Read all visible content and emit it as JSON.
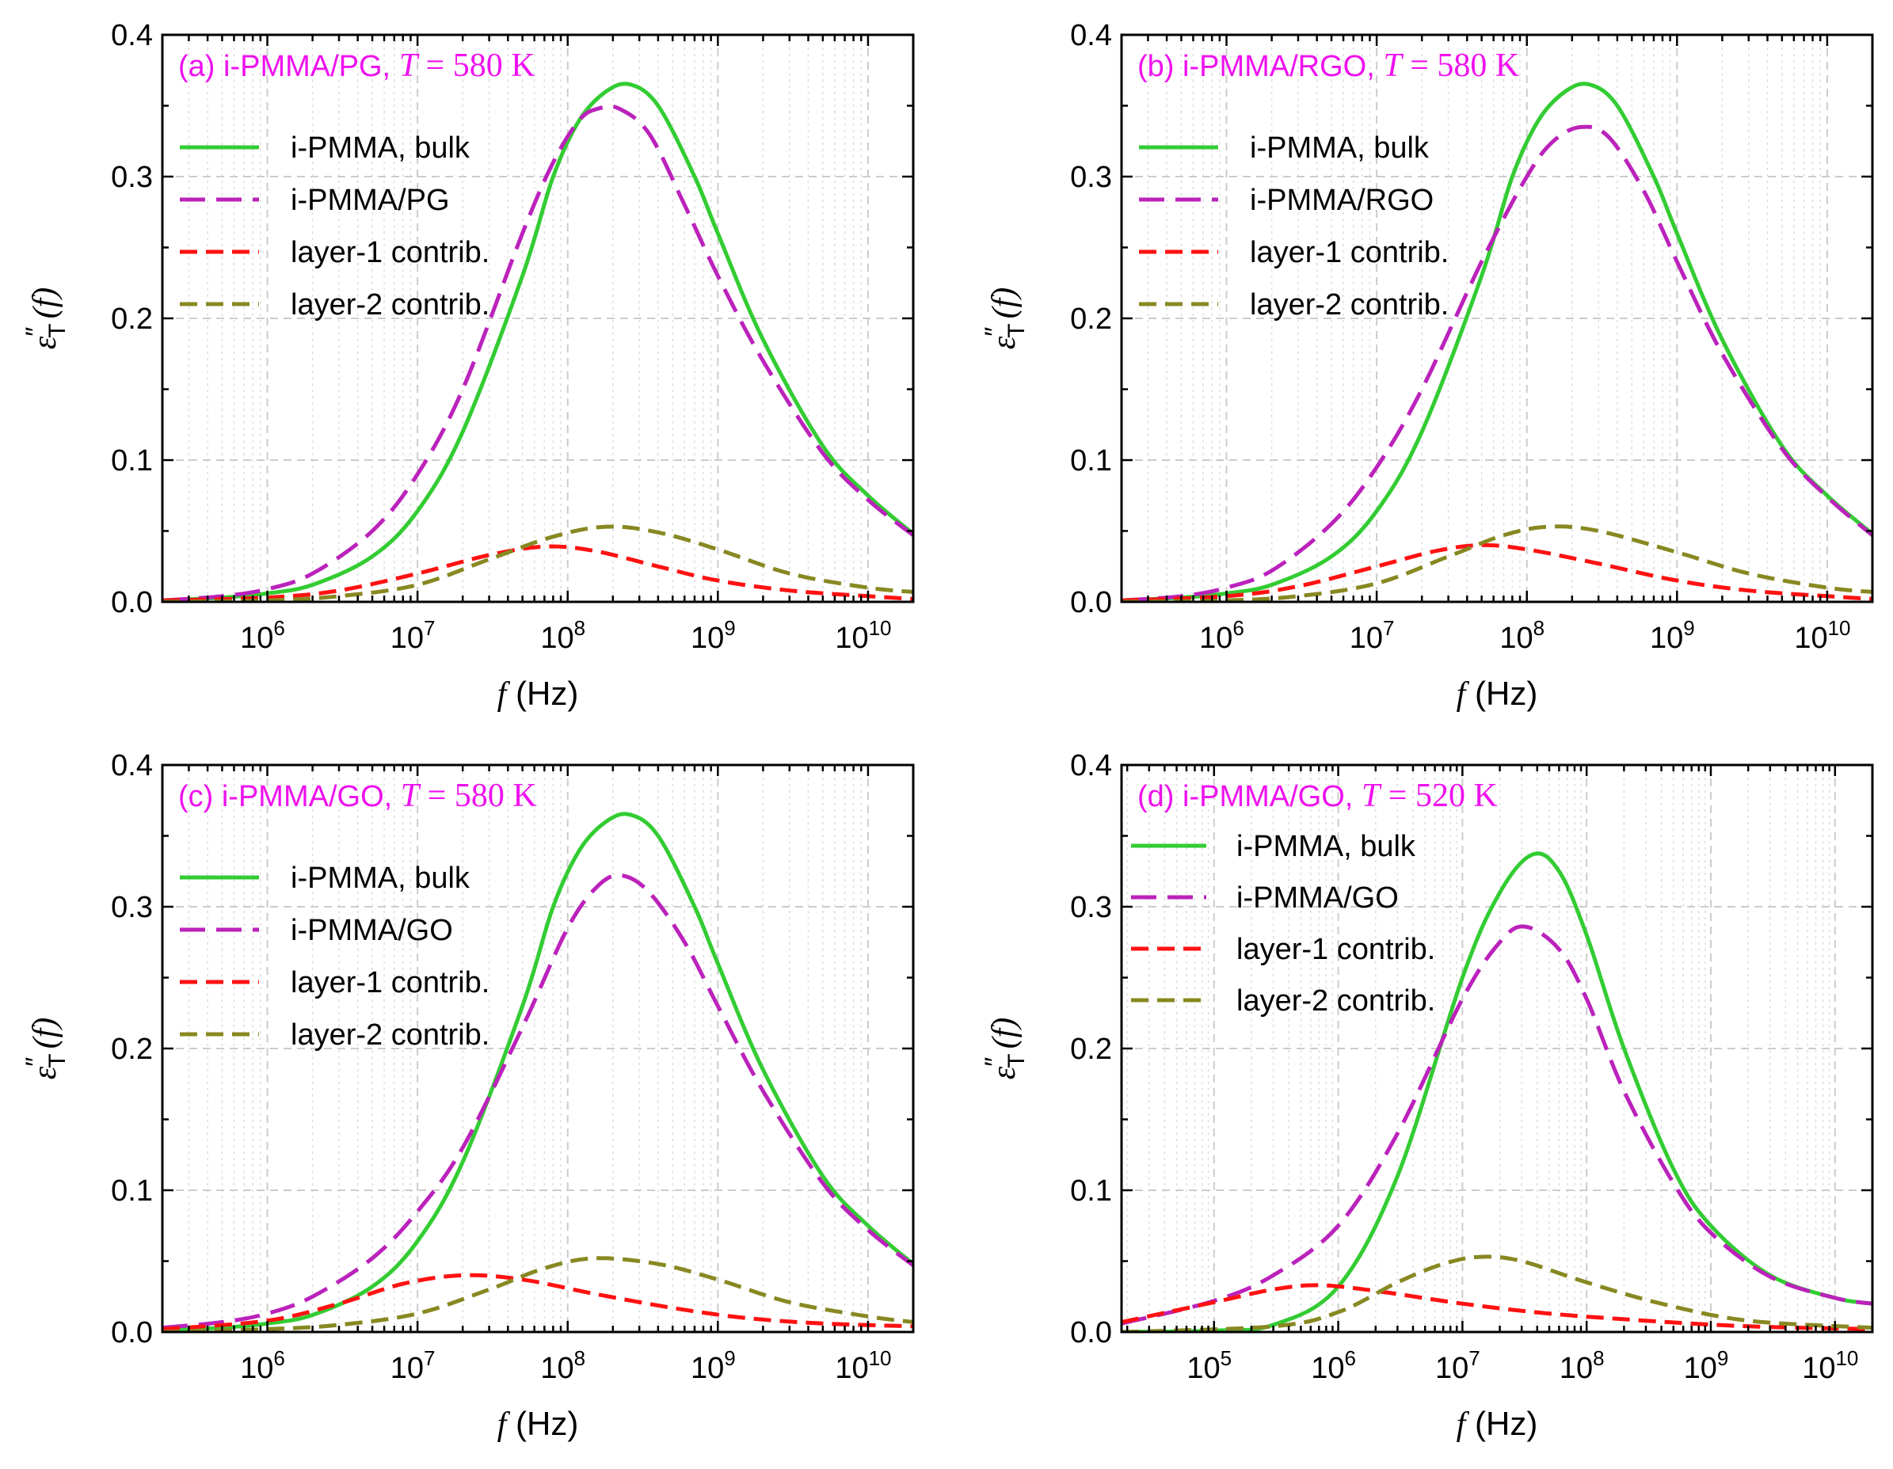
{
  "figure": {
    "layout": "2x2 grid",
    "colors": {
      "bulk": "#33cc33",
      "composite": "#bb22bb",
      "layer1": "#ff1111",
      "layer2": "#888822",
      "title": "#ee11ee",
      "grid": "#cccccc"
    }
  },
  "chart_data": [
    {
      "type": "line",
      "panel": "a",
      "title": {
        "prefix": "(a) i-PMMA/PG, ",
        "var": "T",
        "eq": " = ",
        "value": "580",
        "unit": " K"
      },
      "xlabel": {
        "var": "f",
        "text": " (Hz)"
      },
      "ylabel": {
        "base": "ε",
        "prime": "″",
        "sub": "T",
        "arg": "(f)"
      },
      "xscale": "log",
      "xlim": [
        200000,
        20000000000
      ],
      "ylim": [
        0,
        0.4
      ],
      "x_ticks": [
        {
          "base": "10",
          "exp": "6",
          "value": 1000000
        },
        {
          "base": "10",
          "exp": "7",
          "value": 10000000
        },
        {
          "base": "10",
          "exp": "8",
          "value": 100000000
        },
        {
          "base": "10",
          "exp": "9",
          "value": 1000000000
        },
        {
          "base": "10",
          "exp": "10",
          "value": 10000000000
        }
      ],
      "y_ticks": [
        {
          "label": "0.0",
          "value": 0
        },
        {
          "label": "0.1",
          "value": 0.1
        },
        {
          "label": "0.2",
          "value": 0.2
        },
        {
          "label": "0.3",
          "value": 0.3
        },
        {
          "label": "0.4",
          "value": 0.4
        }
      ],
      "grid": true,
      "legend_position": "upper-left",
      "series": [
        {
          "name": "i-PMMA, bulk",
          "style": "solid",
          "color": "#33cc33",
          "x": [
            200000,
            500000,
            1000000,
            2000000,
            5000000,
            10000000,
            20000000,
            50000000,
            80000000,
            120000000,
            180000000,
            260000000,
            400000000,
            700000000,
            1000000000,
            2000000000,
            5000000000,
            10000000000,
            20000000000
          ],
          "y": [
            0.001,
            0.003,
            0.006,
            0.012,
            0.032,
            0.064,
            0.12,
            0.23,
            0.3,
            0.34,
            0.36,
            0.365,
            0.35,
            0.3,
            0.26,
            0.185,
            0.11,
            0.075,
            0.048
          ]
        },
        {
          "name": "i-PMMA/PG",
          "style": "dash",
          "color": "#bb22bb",
          "x": [
            200000,
            500000,
            1000000,
            2000000,
            5000000,
            10000000,
            20000000,
            50000000,
            80000000,
            120000000,
            160000000,
            220000000,
            350000000,
            600000000,
            1000000000,
            2000000000,
            5000000000,
            10000000000,
            20000000000
          ],
          "y": [
            0.001,
            0.004,
            0.009,
            0.02,
            0.05,
            0.09,
            0.15,
            0.26,
            0.31,
            0.34,
            0.348,
            0.348,
            0.33,
            0.28,
            0.23,
            0.17,
            0.105,
            0.072,
            0.047
          ]
        },
        {
          "name": "layer-1 contrib.",
          "style": "dash",
          "color": "#ff1111",
          "x": [
            200000,
            1000000,
            3000000,
            10000000,
            30000000,
            70000000,
            150000000,
            400000000,
            1000000000,
            3000000000,
            10000000000,
            20000000000
          ],
          "y": [
            0.001,
            0.003,
            0.008,
            0.02,
            0.033,
            0.039,
            0.036,
            0.025,
            0.015,
            0.008,
            0.004,
            0.002
          ]
        },
        {
          "name": "layer-2 contrib.",
          "style": "dash",
          "color": "#888822",
          "x": [
            200000,
            1000000,
            3000000,
            10000000,
            30000000,
            80000000,
            180000000,
            400000000,
            1000000000,
            3000000000,
            10000000000,
            20000000000
          ],
          "y": [
            0.0,
            0.001,
            0.004,
            0.012,
            0.03,
            0.046,
            0.053,
            0.049,
            0.037,
            0.02,
            0.01,
            0.007
          ]
        }
      ]
    },
    {
      "type": "line",
      "panel": "b",
      "title": {
        "prefix": "(b) i-PMMA/RGO, ",
        "var": "T",
        "eq": " = ",
        "value": "580",
        "unit": " K"
      },
      "xlabel": {
        "var": "f",
        "text": " (Hz)"
      },
      "ylabel": {
        "base": "ε",
        "prime": "″",
        "sub": "T",
        "arg": "(f)"
      },
      "xscale": "log",
      "xlim": [
        200000,
        20000000000
      ],
      "ylim": [
        0,
        0.4
      ],
      "x_ticks": [
        {
          "base": "10",
          "exp": "6",
          "value": 1000000
        },
        {
          "base": "10",
          "exp": "7",
          "value": 10000000
        },
        {
          "base": "10",
          "exp": "8",
          "value": 100000000
        },
        {
          "base": "10",
          "exp": "9",
          "value": 1000000000
        },
        {
          "base": "10",
          "exp": "10",
          "value": 10000000000
        }
      ],
      "y_ticks": [
        {
          "label": "0.0",
          "value": 0
        },
        {
          "label": "0.1",
          "value": 0.1
        },
        {
          "label": "0.2",
          "value": 0.2
        },
        {
          "label": "0.3",
          "value": 0.3
        },
        {
          "label": "0.4",
          "value": 0.4
        }
      ],
      "grid": true,
      "legend_position": "upper-left",
      "series": [
        {
          "name": "i-PMMA, bulk",
          "style": "solid",
          "color": "#33cc33",
          "x": [
            200000,
            500000,
            1000000,
            2000000,
            5000000,
            10000000,
            20000000,
            50000000,
            80000000,
            120000000,
            180000000,
            260000000,
            400000000,
            700000000,
            1000000000,
            2000000000,
            5000000000,
            10000000000,
            20000000000
          ],
          "y": [
            0.001,
            0.003,
            0.006,
            0.012,
            0.032,
            0.064,
            0.12,
            0.23,
            0.3,
            0.34,
            0.36,
            0.365,
            0.35,
            0.3,
            0.26,
            0.185,
            0.11,
            0.075,
            0.048
          ]
        },
        {
          "name": "i-PMMA/RGO",
          "style": "dash",
          "color": "#bb22bb",
          "x": [
            200000,
            500000,
            1000000,
            2000000,
            5000000,
            10000000,
            20000000,
            50000000,
            100000000,
            150000000,
            230000000,
            350000000,
            600000000,
            1000000000,
            2000000000,
            5000000000,
            10000000000,
            20000000000
          ],
          "y": [
            0.001,
            0.004,
            0.01,
            0.022,
            0.055,
            0.095,
            0.15,
            0.24,
            0.3,
            0.325,
            0.335,
            0.328,
            0.29,
            0.24,
            0.175,
            0.108,
            0.074,
            0.047
          ]
        },
        {
          "name": "layer-1 contrib.",
          "style": "dash",
          "color": "#ff1111",
          "x": [
            200000,
            1000000,
            3000000,
            10000000,
            25000000,
            50000000,
            100000000,
            300000000,
            1000000000,
            3000000000,
            10000000000,
            20000000000
          ],
          "y": [
            0.001,
            0.004,
            0.011,
            0.025,
            0.036,
            0.04,
            0.037,
            0.027,
            0.015,
            0.008,
            0.004,
            0.002
          ]
        },
        {
          "name": "layer-2 contrib.",
          "style": "dash",
          "color": "#888822",
          "x": [
            200000,
            1000000,
            3000000,
            10000000,
            30000000,
            70000000,
            140000000,
            300000000,
            1000000000,
            3000000000,
            10000000000,
            20000000000
          ],
          "y": [
            0.0,
            0.001,
            0.004,
            0.013,
            0.032,
            0.047,
            0.053,
            0.05,
            0.035,
            0.02,
            0.01,
            0.007
          ]
        }
      ]
    },
    {
      "type": "line",
      "panel": "c",
      "title": {
        "prefix": "(c) i-PMMA/GO, ",
        "var": "T",
        "eq": " = ",
        "value": "580",
        "unit": " K"
      },
      "xlabel": {
        "var": "f",
        "text": " (Hz)"
      },
      "ylabel": {
        "base": "ε",
        "prime": "″",
        "sub": "T",
        "arg": "(f)"
      },
      "xscale": "log",
      "xlim": [
        200000,
        20000000000
      ],
      "ylim": [
        0,
        0.4
      ],
      "x_ticks": [
        {
          "base": "10",
          "exp": "6",
          "value": 1000000
        },
        {
          "base": "10",
          "exp": "7",
          "value": 10000000
        },
        {
          "base": "10",
          "exp": "8",
          "value": 100000000
        },
        {
          "base": "10",
          "exp": "9",
          "value": 1000000000
        },
        {
          "base": "10",
          "exp": "10",
          "value": 10000000000
        }
      ],
      "y_ticks": [
        {
          "label": "0.0",
          "value": 0
        },
        {
          "label": "0.1",
          "value": 0.1
        },
        {
          "label": "0.2",
          "value": 0.2
        },
        {
          "label": "0.3",
          "value": 0.3
        },
        {
          "label": "0.4",
          "value": 0.4
        }
      ],
      "grid": true,
      "legend_position": "upper-left",
      "series": [
        {
          "name": "i-PMMA, bulk",
          "style": "solid",
          "color": "#33cc33",
          "x": [
            200000,
            500000,
            1000000,
            2000000,
            5000000,
            10000000,
            20000000,
            50000000,
            80000000,
            120000000,
            180000000,
            260000000,
            400000000,
            700000000,
            1000000000,
            2000000000,
            5000000000,
            10000000000,
            20000000000
          ],
          "y": [
            0.001,
            0.003,
            0.006,
            0.012,
            0.032,
            0.064,
            0.12,
            0.23,
            0.3,
            0.34,
            0.36,
            0.365,
            0.35,
            0.3,
            0.26,
            0.185,
            0.11,
            0.075,
            0.048
          ]
        },
        {
          "name": "i-PMMA/GO",
          "style": "dash",
          "color": "#bb22bb",
          "x": [
            200000,
            500000,
            1000000,
            2000000,
            5000000,
            10000000,
            20000000,
            50000000,
            100000000,
            160000000,
            230000000,
            350000000,
            600000000,
            1000000000,
            2000000000,
            5000000000,
            10000000000,
            20000000000
          ],
          "y": [
            0.003,
            0.007,
            0.013,
            0.025,
            0.052,
            0.085,
            0.13,
            0.215,
            0.285,
            0.315,
            0.322,
            0.31,
            0.275,
            0.23,
            0.17,
            0.105,
            0.072,
            0.047
          ]
        },
        {
          "name": "layer-1 contrib.",
          "style": "dash",
          "color": "#ff1111",
          "x": [
            200000,
            1000000,
            3000000,
            8000000,
            20000000,
            50000000,
            150000000,
            500000000,
            1500000000,
            5000000000,
            20000000000
          ],
          "y": [
            0.002,
            0.008,
            0.02,
            0.034,
            0.04,
            0.037,
            0.027,
            0.017,
            0.01,
            0.006,
            0.004
          ]
        },
        {
          "name": "layer-2 contrib.",
          "style": "dash",
          "color": "#888822",
          "x": [
            200000,
            1000000,
            3000000,
            10000000,
            30000000,
            70000000,
            150000000,
            400000000,
            1000000000,
            3000000000,
            10000000000,
            20000000000
          ],
          "y": [
            0.0,
            0.002,
            0.005,
            0.013,
            0.03,
            0.045,
            0.052,
            0.048,
            0.037,
            0.021,
            0.011,
            0.007
          ]
        }
      ]
    },
    {
      "type": "line",
      "panel": "d",
      "title": {
        "prefix": "(d) i-PMMA/GO, ",
        "var": "T",
        "eq": " = ",
        "value": "520",
        "unit": " K"
      },
      "xlabel": {
        "var": "f",
        "text": " (Hz)"
      },
      "ylabel": {
        "base": "ε",
        "prime": "″",
        "sub": "T",
        "arg": "(f)"
      },
      "xscale": "log",
      "xlim": [
        18000,
        20000000000
      ],
      "ylim": [
        0,
        0.4
      ],
      "x_ticks": [
        {
          "base": "10",
          "exp": "5",
          "value": 100000
        },
        {
          "base": "10",
          "exp": "6",
          "value": 1000000
        },
        {
          "base": "10",
          "exp": "7",
          "value": 10000000
        },
        {
          "base": "10",
          "exp": "8",
          "value": 100000000
        },
        {
          "base": "10",
          "exp": "9",
          "value": 1000000000
        },
        {
          "base": "10",
          "exp": "10",
          "value": 10000000000
        }
      ],
      "y_ticks": [
        {
          "label": "0.0",
          "value": 0
        },
        {
          "label": "0.1",
          "value": 0.1
        },
        {
          "label": "0.2",
          "value": 0.2
        },
        {
          "label": "0.3",
          "value": 0.3
        },
        {
          "label": "0.4",
          "value": 0.4
        }
      ],
      "grid": true,
      "legend_position": "upper-left",
      "series": [
        {
          "name": "i-PMMA, bulk",
          "style": "solid",
          "color": "#33cc33",
          "x": [
            18000,
            100000,
            300000,
            1000000,
            3000000,
            10000000,
            20000000,
            37000000,
            60000000,
            100000000,
            200000000,
            500000000,
            1000000000,
            3000000000,
            10000000000,
            20000000000
          ],
          "y": [
            0.0,
            0.001,
            0.005,
            0.032,
            0.11,
            0.25,
            0.31,
            0.337,
            0.325,
            0.28,
            0.2,
            0.115,
            0.075,
            0.04,
            0.024,
            0.02
          ]
        },
        {
          "name": "i-PMMA/GO",
          "style": "dash",
          "color": "#bb22bb",
          "x": [
            18000,
            100000,
            300000,
            1000000,
            3000000,
            10000000,
            20000000,
            32000000,
            60000000,
            100000000,
            200000000,
            500000000,
            1000000000,
            3000000000,
            10000000000,
            20000000000
          ],
          "y": [
            0.006,
            0.022,
            0.04,
            0.075,
            0.14,
            0.235,
            0.275,
            0.286,
            0.27,
            0.235,
            0.17,
            0.105,
            0.07,
            0.039,
            0.024,
            0.02
          ]
        },
        {
          "name": "layer-1 contrib.",
          "style": "dash",
          "color": "#ff1111",
          "x": [
            18000,
            100000,
            300000,
            700000,
            2000000,
            10000000,
            50000000,
            300000000,
            2000000000,
            20000000000
          ],
          "y": [
            0.007,
            0.021,
            0.03,
            0.033,
            0.029,
            0.02,
            0.013,
            0.008,
            0.004,
            0.002
          ]
        },
        {
          "name": "layer-2 contrib.",
          "style": "dash",
          "color": "#888822",
          "x": [
            18000,
            300000,
            1000000,
            3000000,
            7000000,
            14000000,
            30000000,
            100000000,
            400000000,
            2000000000,
            20000000000
          ],
          "y": [
            0.0,
            0.004,
            0.014,
            0.035,
            0.048,
            0.053,
            0.05,
            0.035,
            0.02,
            0.008,
            0.003
          ]
        }
      ]
    }
  ]
}
